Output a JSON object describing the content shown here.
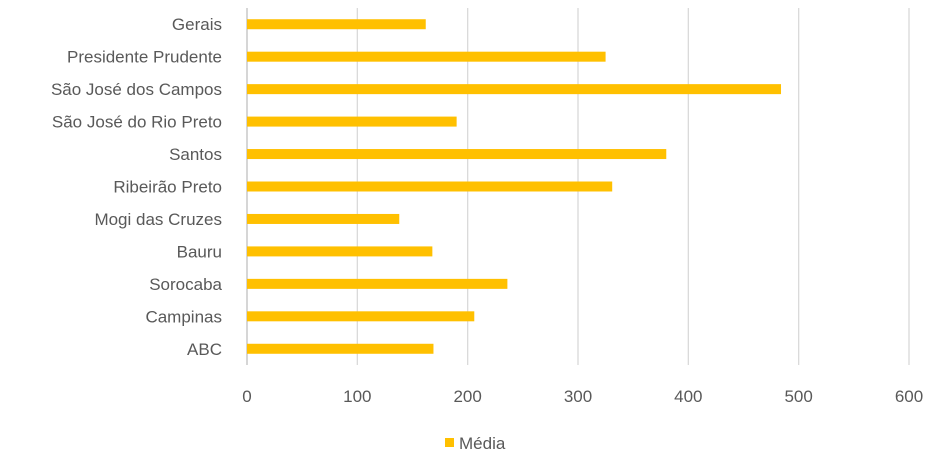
{
  "chart_data": {
    "type": "bar",
    "orientation": "horizontal",
    "categories": [
      "ABC",
      "Campinas",
      "Sorocaba",
      "Bauru",
      "Mogi das Cruzes",
      "Ribeirão Preto",
      "Santos",
      "São José do Rio Preto",
      "São José dos Campos",
      "Presidente Prudente",
      "Gerais"
    ],
    "series": [
      {
        "name": "Média",
        "values": [
          169,
          206,
          236,
          168,
          138,
          331,
          380,
          190,
          484,
          325,
          162
        ]
      }
    ],
    "xlim": [
      0,
      600
    ],
    "xticks": [
      "0",
      "100",
      "200",
      "300",
      "400",
      "500",
      "600"
    ],
    "grid": true,
    "legend": "bottom",
    "colors": {
      "bar": "#FFC000",
      "grid": "#D9D9D9",
      "text": "#595959"
    }
  }
}
